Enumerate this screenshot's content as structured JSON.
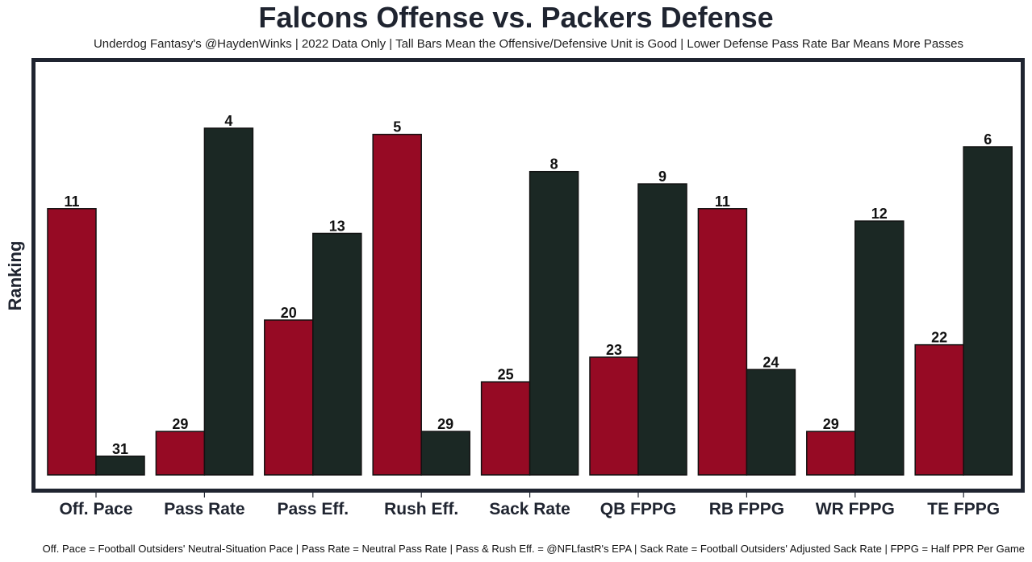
{
  "header": {
    "title": "Falcons Offense vs. Packers Defense",
    "subtitle": "Underdog Fantasy's @HaydenWinks | 2022 Data Only | Tall Bars Mean the Offensive/Defensive Unit is Good | Lower Defense Pass Rate Bar Means More Passes"
  },
  "footer": {
    "caption": "Off. Pace = Football Outsiders' Neutral-Situation Pace | Pass Rate = Neutral Pass Rate | Pass & Rush Eff. = @NFLfastR's EPA | Sack Rate = Football Outsiders' Adjusted Sack Rate | FPPG = Half PPR Per Game"
  },
  "colors": {
    "offense": "#960a24",
    "defense": "#1b2824",
    "frame": "#1f2430"
  },
  "chart_data": {
    "type": "bar",
    "title": "Falcons Offense vs. Packers Defense",
    "xlabel": "",
    "ylabel": "Ranking",
    "categories": [
      "Off. Pace",
      "Pass Rate",
      "Pass Eff.",
      "Rush Eff.",
      "Sack Rate",
      "QB FPPG",
      "RB FPPG",
      "WR FPPG",
      "TE FPPG"
    ],
    "series": [
      {
        "name": "Falcons Offense",
        "values": [
          11,
          29,
          20,
          5,
          25,
          23,
          11,
          29,
          22
        ]
      },
      {
        "name": "Packers Defense",
        "values": [
          31,
          4,
          13,
          29,
          8,
          9,
          24,
          12,
          6
        ]
      }
    ],
    "ylim": [
      32,
      1
    ],
    "y_inverted_note": "Rank 1 is tallest bar",
    "grid": false,
    "legend": "none"
  }
}
